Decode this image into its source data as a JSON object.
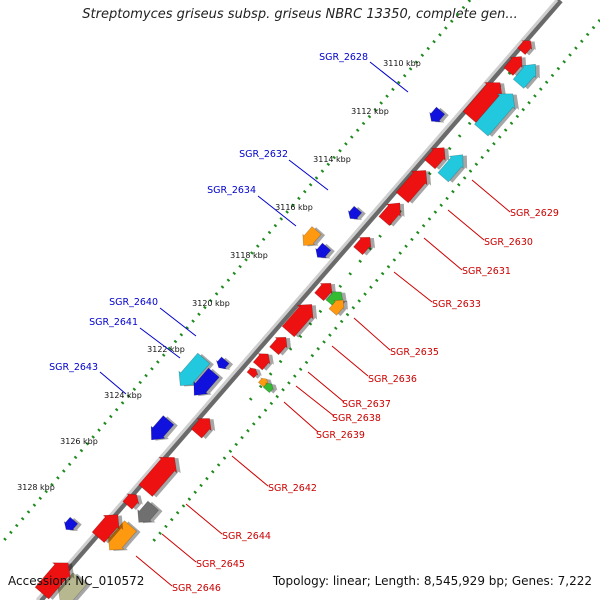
{
  "title": "Streptomyces griseus subsp. griseus NBRC 13350, complete gen...",
  "footer": {
    "accession": "Accession: NC_010572",
    "stats": "Topology: linear; Length: 8,545,929 bp; Genes: 7,222"
  },
  "colors": {
    "backbone": "#9a9a9a",
    "forward_track_dots": "#1e8a1e",
    "label_blue": "#0000cc",
    "label_red": "#cc0000",
    "gene_red": "#ee1111",
    "gene_blue": "#1111dd",
    "gene_cyan": "#22c8dd",
    "gene_orange": "#ff9910",
    "gene_gray": "#707070",
    "gene_olive": "#b8b890",
    "gene_green": "#33bb33"
  },
  "scale": {
    "unit": "kbp",
    "ticks": [
      "3110 kbp",
      "3112 kbp",
      "3114 kbp",
      "3116 kbp",
      "3118 kbp",
      "3120 kbp",
      "3122 kbp",
      "3124 kbp",
      "3126 kbp",
      "3128 kbp"
    ]
  },
  "gene_labels": [
    {
      "name": "SGR_2628",
      "strand": "-"
    },
    {
      "name": "SGR_2629",
      "strand": "+"
    },
    {
      "name": "SGR_2630",
      "strand": "+"
    },
    {
      "name": "SGR_2631",
      "strand": "+"
    },
    {
      "name": "SGR_2632",
      "strand": "-"
    },
    {
      "name": "SGR_2633",
      "strand": "+"
    },
    {
      "name": "SGR_2634",
      "strand": "-"
    },
    {
      "name": "SGR_2635",
      "strand": "+"
    },
    {
      "name": "SGR_2636",
      "strand": "+"
    },
    {
      "name": "SGR_2637",
      "strand": "+"
    },
    {
      "name": "SGR_2638",
      "strand": "+"
    },
    {
      "name": "SGR_2639",
      "strand": "+"
    },
    {
      "name": "SGR_2640",
      "strand": "-"
    },
    {
      "name": "SGR_2641",
      "strand": "-"
    },
    {
      "name": "SGR_2642",
      "strand": "+"
    },
    {
      "name": "SGR_2643",
      "strand": "-"
    },
    {
      "name": "SGR_2644",
      "strand": "+"
    },
    {
      "name": "SGR_2645",
      "strand": "+"
    },
    {
      "name": "SGR_2646",
      "strand": "+"
    }
  ]
}
